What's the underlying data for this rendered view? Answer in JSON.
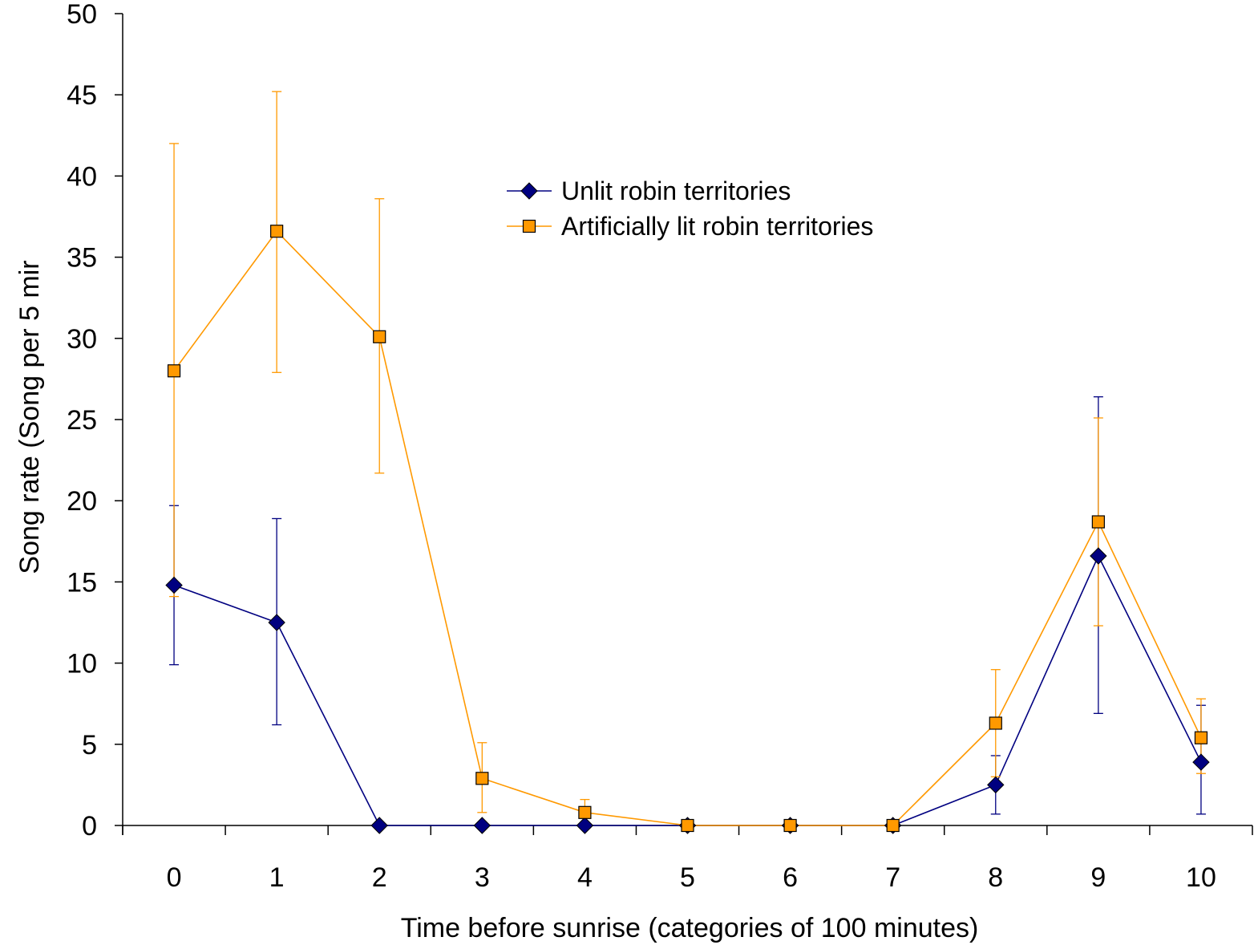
{
  "chart_data": {
    "type": "line",
    "xlabel": "Time before sunrise (categories of 100 minutes)",
    "ylabel": "Song rate (Song per 5 mir",
    "ylim": [
      0,
      50
    ],
    "yticks": [
      "0",
      "5",
      "10",
      "15",
      "20",
      "25",
      "30",
      "35",
      "40",
      "45",
      "50"
    ],
    "categories": [
      "0",
      "1",
      "2",
      "3",
      "4",
      "5",
      "6",
      "7",
      "8",
      "9",
      "10"
    ],
    "grid": false,
    "legend_position": "top-center",
    "error_bars": true,
    "series": [
      {
        "name": "Unlit robin territories",
        "color": "#000080",
        "marker": "diamond",
        "values": [
          14.8,
          12.5,
          0,
          0,
          0,
          0,
          0,
          0,
          2.5,
          16.6,
          3.9
        ],
        "error_upper": [
          19.7,
          18.9,
          0,
          0,
          0,
          0,
          0,
          0,
          4.3,
          26.4,
          7.4
        ],
        "error_lower": [
          9.9,
          6.2,
          0,
          0,
          0,
          0,
          0,
          0,
          0.7,
          6.9,
          0.7
        ]
      },
      {
        "name": "Artificially lit robin territories",
        "color": "#FF9900",
        "marker": "square",
        "values": [
          28.0,
          36.6,
          30.1,
          2.9,
          0.8,
          0,
          0,
          0,
          6.3,
          18.7,
          5.4
        ],
        "error_upper": [
          42.0,
          45.2,
          38.6,
          5.1,
          1.6,
          0,
          0,
          0,
          9.6,
          25.1,
          7.8
        ],
        "error_lower": [
          14.1,
          27.9,
          21.7,
          0.8,
          0.2,
          0,
          0,
          0,
          3.0,
          12.3,
          3.2
        ]
      }
    ]
  }
}
